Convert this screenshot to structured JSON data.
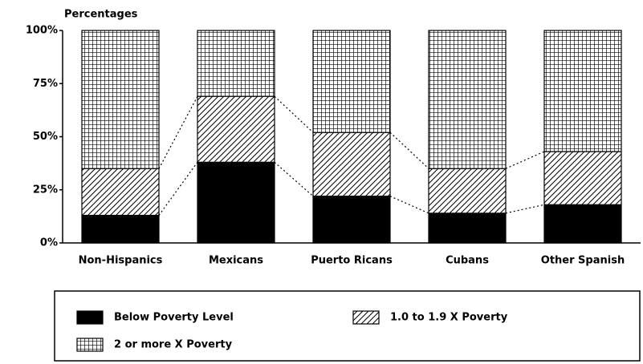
{
  "chart_data": {
    "type": "stacked_bar",
    "y_label": "Percentages",
    "categories": [
      "Non-Hispanics",
      "Mexicans",
      "Puerto Ricans",
      "Cubans",
      "Other Spanish"
    ],
    "series": [
      {
        "name": "Below Poverty Level",
        "color": "#000000",
        "pattern": "solid",
        "values": [
          13,
          38,
          22,
          14,
          18
        ]
      },
      {
        "name": "1.0 to 1.9 X Poverty",
        "color": "#000000",
        "pattern": "hatch",
        "values": [
          22,
          31,
          30,
          21,
          25
        ]
      },
      {
        "name": "2 or more X Poverty",
        "color": "#000000",
        "pattern": "grid",
        "values": [
          65,
          31,
          48,
          65,
          57
        ]
      }
    ],
    "ylim": [
      0,
      100
    ],
    "yticks": [
      {
        "value": 0,
        "label": "0%"
      },
      {
        "value": 25,
        "label": "25%"
      },
      {
        "value": 50,
        "label": "50%"
      },
      {
        "value": 75,
        "label": "75%"
      },
      {
        "value": 100,
        "label": "100%"
      }
    ]
  }
}
